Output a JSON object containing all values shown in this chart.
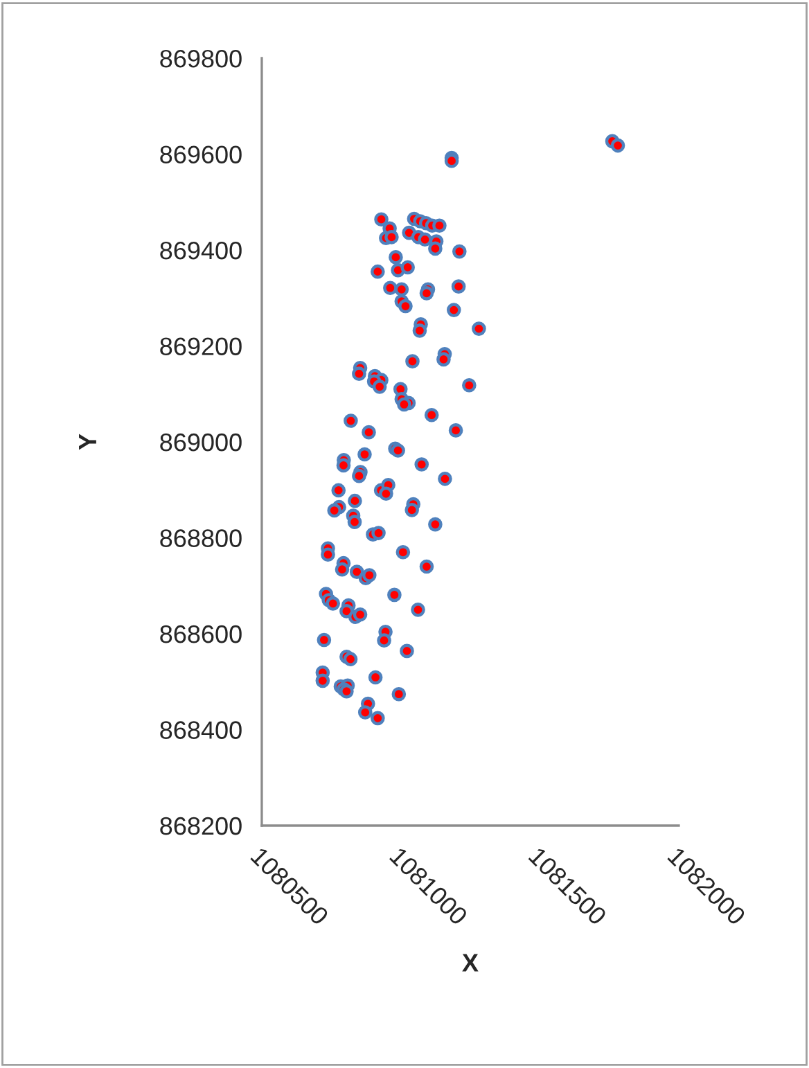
{
  "chart_data": {
    "type": "scatter",
    "xlabel": "X",
    "ylabel": "Y",
    "xlim": [
      1080500,
      1082000
    ],
    "xticks": [
      1080500,
      1081000,
      1081500,
      1082000
    ],
    "ylim": [
      868200,
      869800
    ],
    "yticks": [
      868200,
      868400,
      868600,
      868800,
      869000,
      869200,
      869400,
      869600,
      869800
    ],
    "grid": false,
    "legend": false,
    "marker": "circle",
    "series": [
      {
        "color": "#ff0000",
        "x": [
          1081183,
          1081183,
          1081761,
          1081781,
          1080930,
          1081048,
          1081070,
          1081091,
          1081113,
          1081139,
          1080960,
          1081030,
          1081063,
          1081087,
          1080947,
          1080967,
          1081128,
          1081124,
          1081211,
          1080982,
          1080917,
          1080990,
          1081025,
          1080962,
          1081003,
          1081098,
          1081093,
          1081208,
          1081003,
          1081017,
          1081191,
          1081072,
          1081068,
          1081281,
          1081158,
          1081154,
          1081042,
          1081246,
          1080854,
          1080850,
          1080907,
          1080930,
          1080904,
          1080924,
          1080999,
          1081003,
          1081028,
          1081012,
          1081111,
          1080820,
          1080885,
          1081198,
          1080980,
          1080990,
          1080870,
          1080795,
          1080794,
          1081075,
          1080855,
          1080850,
          1081159,
          1080776,
          1080929,
          1080955,
          1080947,
          1080835,
          1081045,
          1081040,
          1080778,
          1080761,
          1080829,
          1080834,
          1081124,
          1080900,
          1080920,
          1080738,
          1080738,
          1081008,
          1080794,
          1080789,
          1081093,
          1080842,
          1080874,
          1080887,
          1080731,
          1080741,
          1080756,
          1080977,
          1080812,
          1080805,
          1080837,
          1080854,
          1081062,
          1080724,
          1080945,
          1080940,
          1081022,
          1080805,
          1080819,
          1080719,
          1080719,
          1080909,
          1080784,
          1080809,
          1080795,
          1080805,
          1080993,
          1080882,
          1080872,
          1080917
        ],
        "values": [
          869592,
          869586,
          869627,
          869618,
          869464,
          869465,
          869460,
          869456,
          869451,
          869451,
          869445,
          869436,
          869427,
          869422,
          869425,
          869427,
          869418,
          869403,
          869397,
          869385,
          869355,
          869358,
          869364,
          869321,
          869318,
          869318,
          869310,
          869324,
          869293,
          869283,
          869275,
          869245,
          869232,
          869236,
          869183,
          869172,
          869168,
          869118,
          869154,
          869142,
          869137,
          869129,
          869126,
          869115,
          869110,
          869089,
          869081,
          869078,
          869056,
          869044,
          869020,
          869024,
          868986,
          868982,
          868974,
          868962,
          868951,
          868953,
          868937,
          868929,
          868923,
          868899,
          868899,
          868910,
          868892,
          868877,
          868870,
          868858,
          868864,
          868857,
          868846,
          868833,
          868828,
          868807,
          868810,
          868778,
          868765,
          868770,
          868747,
          868734,
          868740,
          868729,
          868716,
          868722,
          868683,
          868670,
          868663,
          868681,
          868659,
          868647,
          868635,
          868640,
          868650,
          868587,
          868604,
          868586,
          868564,
          868552,
          868547,
          868519,
          868502,
          868509,
          868490,
          868492,
          868484,
          868480,
          868474,
          868454,
          868436,
          868424
        ]
      }
    ]
  }
}
